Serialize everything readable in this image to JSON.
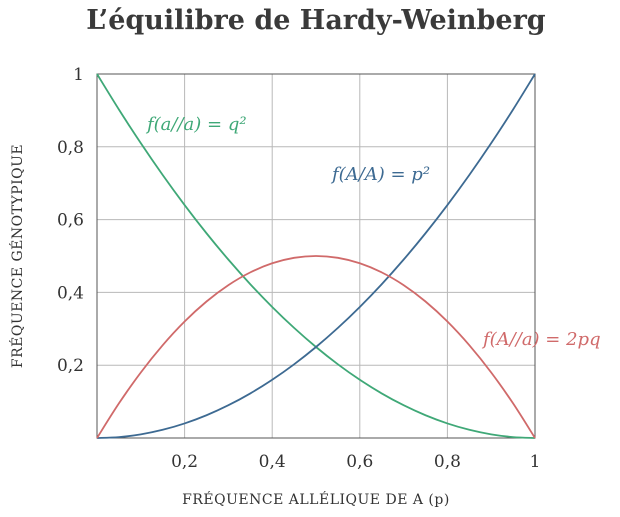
{
  "chart_data": {
    "type": "line",
    "title": "L’équilibre de Hardy-Weinberg",
    "xlabel": "FRÉQUENCE ALLÉLIQUE DE A (p)",
    "ylabel": "FRÉQUENCE GÉNOTYPIQUE",
    "xlim": [
      0,
      1
    ],
    "ylim": [
      0,
      1
    ],
    "grid": true,
    "x_ticks": [
      0.2,
      0.4,
      0.6,
      0.8,
      1
    ],
    "x_tick_labels": [
      "0,2",
      "0,4",
      "0,6",
      "0,8",
      "1"
    ],
    "y_ticks": [
      0.2,
      0.4,
      0.6,
      0.8,
      1
    ],
    "y_tick_labels": [
      "0,2",
      "0,4",
      "0,6",
      "0,8",
      "1"
    ],
    "x": [
      0,
      0.05,
      0.1,
      0.15,
      0.2,
      0.25,
      0.3,
      0.35,
      0.4,
      0.45,
      0.5,
      0.55,
      0.6,
      0.65,
      0.7,
      0.75,
      0.8,
      0.85,
      0.9,
      0.95,
      1
    ],
    "series": [
      {
        "name": "f(a//a) = q²",
        "color": "#3fa877",
        "values": [
          1,
          0.9025,
          0.81,
          0.7225,
          0.64,
          0.5625,
          0.49,
          0.4225,
          0.36,
          0.3025,
          0.25,
          0.2025,
          0.16,
          0.1225,
          0.09,
          0.0625,
          0.04,
          0.0225,
          0.01,
          0.0025,
          0
        ]
      },
      {
        "name": "f(A/A) = p²",
        "color": "#3d6a92",
        "values": [
          0,
          0.0025,
          0.01,
          0.0225,
          0.04,
          0.0625,
          0.09,
          0.1225,
          0.16,
          0.2025,
          0.25,
          0.3025,
          0.36,
          0.4225,
          0.49,
          0.5625,
          0.64,
          0.7225,
          0.81,
          0.9025,
          1
        ]
      },
      {
        "name": "f(A//a) = 2pq",
        "color": "#d06a6a",
        "values": [
          0,
          0.095,
          0.18,
          0.255,
          0.32,
          0.375,
          0.42,
          0.455,
          0.48,
          0.495,
          0.5,
          0.495,
          0.48,
          0.455,
          0.42,
          0.375,
          0.32,
          0.255,
          0.18,
          0.095,
          0
        ]
      }
    ]
  }
}
